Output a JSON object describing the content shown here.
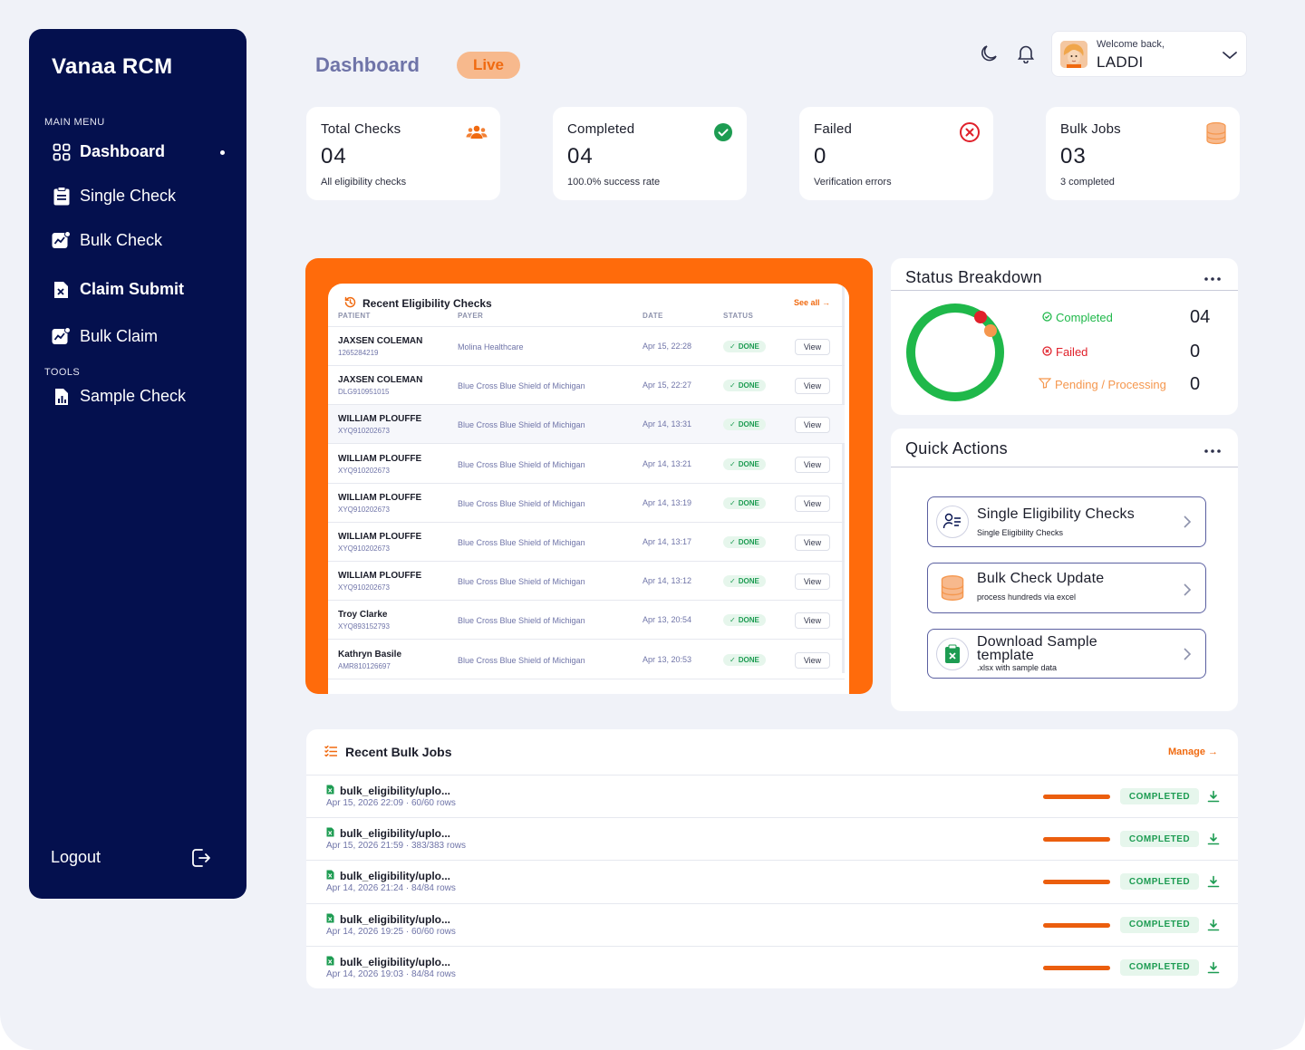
{
  "brand": "Vanaa RCM",
  "sidebar": {
    "main_menu_label": "MAIN MENU",
    "tools_label": "TOOLS",
    "items": [
      {
        "label": "Dashboard",
        "icon": "grid-icon"
      },
      {
        "label": "Single Check",
        "icon": "clipboard-icon"
      },
      {
        "label": "Bulk Check",
        "icon": "chart-icon"
      },
      {
        "label": "Claim Submit",
        "icon": "file-x-icon"
      },
      {
        "label": "Bulk Claim",
        "icon": "chart-icon"
      }
    ],
    "tools": [
      {
        "label": "Sample Check",
        "icon": "file-chart-icon"
      }
    ],
    "logout_label": "Logout"
  },
  "header": {
    "title": "Dashboard",
    "live_label": "Live",
    "welcome": "Welcome back,",
    "user_name": "LADDI"
  },
  "stats": [
    {
      "title": "Total Checks",
      "value": "04",
      "sub": "All eligibility checks",
      "icon": "users-icon",
      "color": "#f06a10"
    },
    {
      "title": "Completed",
      "value": "04",
      "sub": "100.0% success rate",
      "icon": "check-circle-icon",
      "color": "#1d9c52"
    },
    {
      "title": "Failed",
      "value": "0",
      "sub": "Verification errors",
      "icon": "x-circle-icon",
      "color": "#e0202a"
    },
    {
      "title": "Bulk Jobs",
      "value": "03",
      "sub": "3 completed",
      "icon": "database-icon",
      "color": "#f5974e"
    }
  ],
  "recent_checks": {
    "title": "Recent Eligibility Checks",
    "see_all": "See all →",
    "columns": [
      "PATIENT",
      "PAYER",
      "DATE",
      "STATUS"
    ],
    "status_label": "DONE",
    "view_label": "View",
    "rows": [
      {
        "name": "JAXSEN COLEMAN",
        "id": "1265284219",
        "payer": "Molina Healthcare",
        "date": "Apr 15, 22:28"
      },
      {
        "name": "JAXSEN COLEMAN",
        "id": "DLG910951015",
        "payer": "Blue Cross Blue Shield of Michigan",
        "date": "Apr 15, 22:27"
      },
      {
        "name": "WILLIAM PLOUFFE",
        "id": "XYQ910202673",
        "payer": "Blue Cross Blue Shield of Michigan",
        "date": "Apr 14, 13:31"
      },
      {
        "name": "WILLIAM PLOUFFE",
        "id": "XYQ910202673",
        "payer": "Blue Cross Blue Shield of Michigan",
        "date": "Apr 14, 13:21"
      },
      {
        "name": "WILLIAM PLOUFFE",
        "id": "XYQ910202673",
        "payer": "Blue Cross Blue Shield of Michigan",
        "date": "Apr 14, 13:19"
      },
      {
        "name": "WILLIAM PLOUFFE",
        "id": "XYQ910202673",
        "payer": "Blue Cross Blue Shield of Michigan",
        "date": "Apr 14, 13:17"
      },
      {
        "name": "WILLIAM PLOUFFE",
        "id": "XYQ910202673",
        "payer": "Blue Cross Blue Shield of Michigan",
        "date": "Apr 14, 13:12"
      },
      {
        "name": "Troy Clarke",
        "id": "XYQ893152793",
        "payer": "Blue Cross Blue Shield of Michigan",
        "date": "Apr 13, 20:54"
      },
      {
        "name": "Kathryn Basile",
        "id": "AMR810126697",
        "payer": "Blue Cross Blue Shield of Michigan",
        "date": "Apr 13, 20:53"
      }
    ]
  },
  "status_breakdown": {
    "title": "Status Breakdown",
    "items": [
      {
        "label": "Completed",
        "value": "04",
        "color": "#1fb84a"
      },
      {
        "label": "Failed",
        "value": "0",
        "color": "#e0202a"
      },
      {
        "label": "Pending / Processing",
        "value": "0",
        "color": "#f5974e"
      }
    ]
  },
  "quick_actions": {
    "title": "Quick Actions",
    "items": [
      {
        "title": "Single Eligibility Checks",
        "sub": "Single Eligibility Checks"
      },
      {
        "title": "Bulk Check Update",
        "sub": "process hundreds via  excel"
      },
      {
        "title": "Download Sample template",
        "sub": ".xlsx with sample data"
      }
    ]
  },
  "bulk_jobs": {
    "title": "Recent Bulk Jobs",
    "manage": "Manage →",
    "status_label": "COMPLETED",
    "rows": [
      {
        "file": "bulk_eligibility/uplo...",
        "meta": "Apr 15, 2026 22:09  ·  60/60 rows",
        "progress": 1.0
      },
      {
        "file": "bulk_eligibility/uplo...",
        "meta": "Apr 15, 2026 21:59  ·  383/383 rows",
        "progress": 1.0
      },
      {
        "file": "bulk_eligibility/uplo...",
        "meta": "Apr 14, 2026 21:24  ·  84/84 rows",
        "progress": 1.0
      },
      {
        "file": "bulk_eligibility/uplo...",
        "meta": "Apr 14, 2026 19:25  ·  60/60 rows",
        "progress": 1.0
      },
      {
        "file": "bulk_eligibility/uplo...",
        "meta": "Apr 14, 2026 19:03  ·  84/84 rows",
        "progress": 1.0
      }
    ]
  }
}
